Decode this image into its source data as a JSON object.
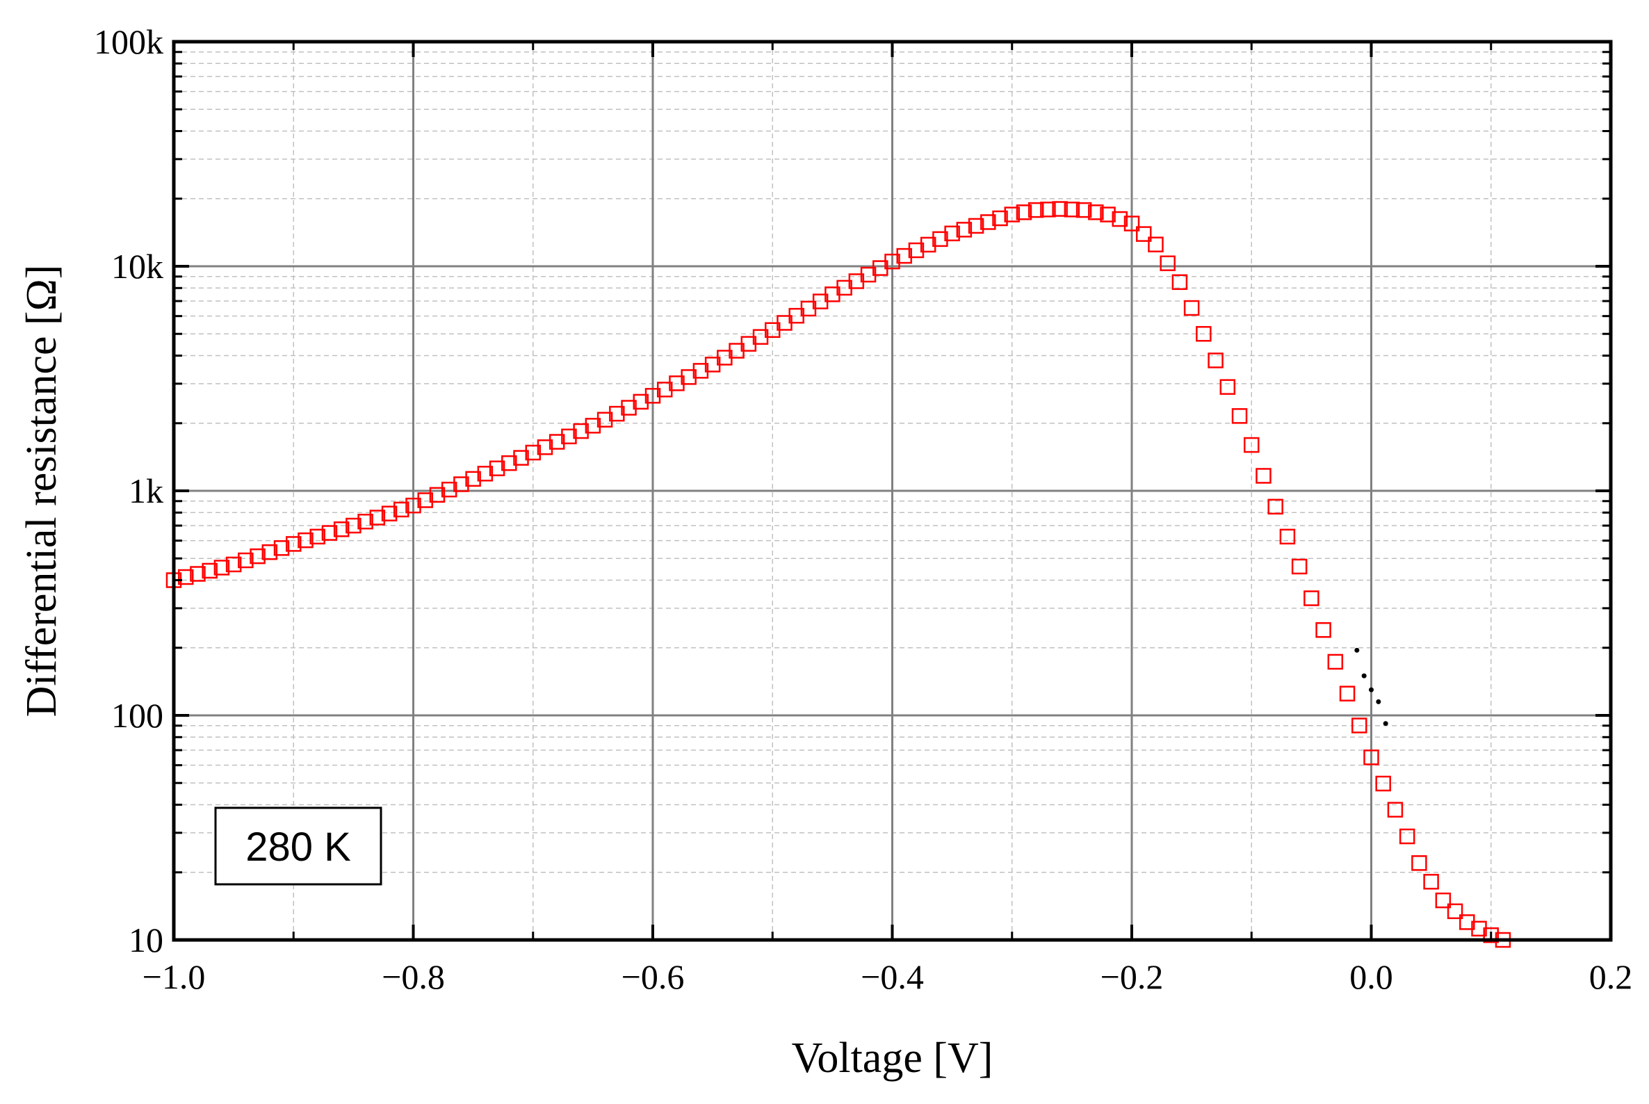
{
  "chart_data": {
    "type": "scatter",
    "xlabel": "Voltage [V]",
    "ylabel": "Differential resistance [Ω]",
    "xlim": [
      -1.0,
      0.2
    ],
    "ylim": [
      10,
      100000
    ],
    "yscale": "log",
    "grid": "major solid, minor dashed",
    "x_ticks": [
      -1.0,
      -0.8,
      -0.6,
      -0.4,
      -0.2,
      0.0,
      0.2
    ],
    "x_tick_labels": [
      "−1.0",
      "−0.8",
      "−0.6",
      "−0.4",
      "−0.2",
      "0.0",
      "0.2"
    ],
    "y_ticks": [
      10,
      100,
      1000,
      10000,
      100000
    ],
    "y_tick_labels": [
      "10",
      "100",
      "1k",
      "10k",
      "100k"
    ],
    "annotation": "280 K",
    "colors": {
      "marker": "#ff0000",
      "axes": "#000000",
      "grid_major": "#808080",
      "grid_minor": "#c0c0c0",
      "fit": "#000000"
    },
    "series": [
      {
        "marker": "open-square",
        "x": [
          -1.0,
          -0.95,
          -0.9,
          -0.85,
          -0.8,
          -0.75,
          -0.7,
          -0.65,
          -0.6,
          -0.55,
          -0.5,
          -0.45,
          -0.4,
          -0.35,
          -0.3,
          -0.28,
          -0.26,
          -0.24,
          -0.22,
          -0.2,
          -0.18,
          -0.16,
          -0.14,
          -0.12,
          -0.1,
          -0.08,
          -0.06,
          -0.04,
          -0.02,
          0.0,
          0.02,
          0.04,
          0.06,
          0.08,
          0.1,
          0.11
        ],
        "y": [
          400,
          470,
          580,
          700,
          860,
          1130,
          1480,
          1950,
          2650,
          3650,
          5200,
          7500,
          10500,
          14000,
          17000,
          17800,
          18000,
          17800,
          17000,
          15500,
          12500,
          8500,
          5000,
          2900,
          1600,
          850,
          460,
          240,
          125,
          65,
          38,
          22,
          15,
          12,
          10.5,
          10
        ]
      },
      {
        "marker": "dot",
        "x": [
          -0.012,
          -0.006,
          0.0,
          0.006,
          0.012
        ],
        "y": [
          195,
          150,
          130,
          115,
          92
        ]
      }
    ]
  }
}
